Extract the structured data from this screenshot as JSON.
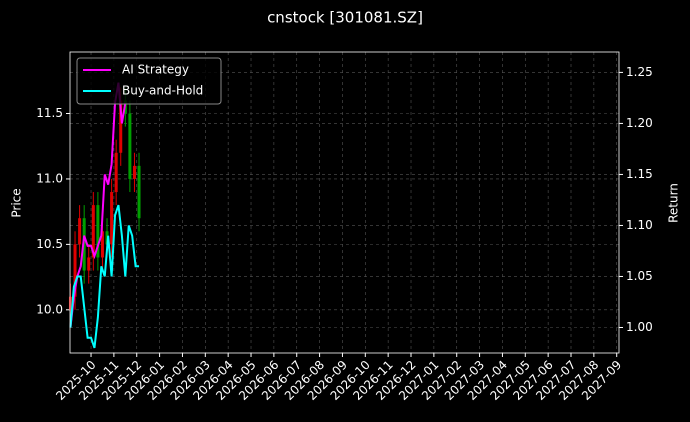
{
  "chart_data": {
    "type": "candlestick-returns",
    "title": "cnstock [301081.SZ]",
    "ylabel": "Price",
    "y2label": "Return",
    "xlim": [
      -0.92,
      23.1
    ],
    "xticks": [
      {
        "value": 0,
        "label": "2025-10"
      },
      {
        "value": 1,
        "label": "2025-11"
      },
      {
        "value": 2,
        "label": "2025-12"
      },
      {
        "value": 3,
        "label": "2026-01"
      },
      {
        "value": 4,
        "label": "2026-02"
      },
      {
        "value": 5,
        "label": "2026-03"
      },
      {
        "value": 6,
        "label": "2026-04"
      },
      {
        "value": 7,
        "label": "2026-05"
      },
      {
        "value": 8,
        "label": "2026-06"
      },
      {
        "value": 9,
        "label": "2026-07"
      },
      {
        "value": 10,
        "label": "2026-08"
      },
      {
        "value": 11,
        "label": "2026-09"
      },
      {
        "value": 12,
        "label": "2026-10"
      },
      {
        "value": 13,
        "label": "2026-11"
      },
      {
        "value": 14,
        "label": "2026-12"
      },
      {
        "value": 15,
        "label": "2027-01"
      },
      {
        "value": 16,
        "label": "2027-02"
      },
      {
        "value": 17,
        "label": "2027-03"
      },
      {
        "value": 18,
        "label": "2027-04"
      },
      {
        "value": 19,
        "label": "2027-05"
      },
      {
        "value": 20,
        "label": "2027-06"
      },
      {
        "value": 21,
        "label": "2027-07"
      },
      {
        "value": 22,
        "label": "2027-08"
      },
      {
        "value": 23,
        "label": "2027-09"
      }
    ],
    "ylim": [
      9.67,
      11.97
    ],
    "yticks": [
      {
        "value": 10,
        "label": "10.0"
      },
      10.5,
      {
        "value": 11,
        "label": "11.0"
      },
      11.5
    ],
    "y2lim": [
      0.975,
      1.27
    ],
    "y2ticks": [
      {
        "value": 1,
        "label": "1.00"
      },
      1.05,
      {
        "value": 1.1,
        "label": "1.10"
      },
      1.15,
      {
        "value": 1.2,
        "label": "1.20"
      },
      1.25
    ],
    "grid": true,
    "legend": "upper left",
    "candles": {
      "up_color": "#e00000",
      "down_color": "#00a000",
      "x": [
        -0.9,
        -0.7,
        -0.5,
        -0.3,
        -0.1,
        0.1,
        0.3,
        0.5,
        0.7,
        0.9,
        1.1,
        1.3,
        1.5,
        1.7,
        1.9,
        2.1
      ],
      "open": [
        10.0,
        10.1,
        10.5,
        10.7,
        10.3,
        10.4,
        10.8,
        10.4,
        10.6,
        10.5,
        10.9,
        11.2,
        11.6,
        11.5,
        11.0,
        11.1
      ],
      "high": [
        10.2,
        10.6,
        10.8,
        10.8,
        10.5,
        10.9,
        10.9,
        10.7,
        10.7,
        11.0,
        11.3,
        11.7,
        11.7,
        11.6,
        11.2,
        11.2
      ],
      "low": [
        9.9,
        10.0,
        10.4,
        10.2,
        10.2,
        10.3,
        10.3,
        10.3,
        10.4,
        10.4,
        10.8,
        11.1,
        11.4,
        10.9,
        10.9,
        10.6
      ],
      "close": [
        10.1,
        10.5,
        10.7,
        10.3,
        10.4,
        10.8,
        10.4,
        10.6,
        10.5,
        10.9,
        11.2,
        11.6,
        11.5,
        11.0,
        11.1,
        10.7
      ]
    },
    "x": [
      -0.9,
      -0.75,
      -0.6,
      -0.45,
      -0.3,
      -0.15,
      0,
      0.15,
      0.3,
      0.45,
      0.6,
      0.75,
      0.9,
      1.05,
      1.2,
      1.35,
      1.5,
      1.65,
      1.8,
      1.95,
      2.1
    ],
    "series": [
      {
        "name": "AI Strategy",
        "color": "#ff00ff",
        "axis": "y2",
        "values": [
          1.0,
          1.03,
          1.05,
          1.06,
          1.09,
          1.08,
          1.08,
          1.07,
          1.08,
          1.09,
          1.15,
          1.14,
          1.16,
          1.22,
          1.24,
          1.2,
          1.22,
          null,
          null,
          null,
          null
        ]
      },
      {
        "name": "Buy-and-Hold",
        "color": "#00ffff",
        "axis": "y2",
        "values": [
          1.0,
          1.04,
          1.05,
          1.05,
          1.02,
          0.99,
          0.99,
          0.98,
          1.01,
          1.06,
          1.05,
          1.09,
          1.05,
          1.11,
          1.12,
          1.09,
          1.05,
          1.1,
          1.09,
          1.06,
          1.06
        ]
      }
    ]
  }
}
